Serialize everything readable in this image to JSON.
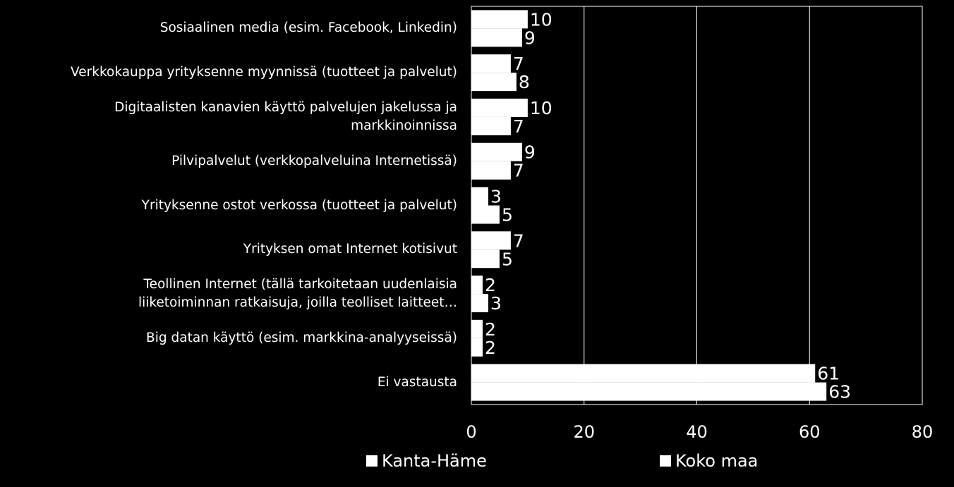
{
  "chart_data": {
    "type": "bar",
    "orientation": "horizontal",
    "categories": [
      "Sosiaalinen media (esim. Facebook, Linkedin)",
      "Verkkokauppa yrityksenne myynnissä (tuotteet ja palvelut)",
      "Digitaalisten kanavien käyttö palvelujen jakelussa ja markkinoinnissa",
      "Pilvipalvelut  (verkkopalveluina Internetissä)",
      "Yrityksenne ostot verkossa (tuotteet ja palvelut)",
      "Yrityksen omat Internet kotisivut",
      "Teollinen Internet (tällä tarkoitetaan uudenlaisia liiketoiminnan ratkaisuja, joilla teolliset laitteet…",
      "Big datan käyttö (esim. markkina-analyyseissä)",
      "Ei vastausta"
    ],
    "category_lines": [
      [
        "Sosiaalinen media (esim. Facebook, Linkedin)"
      ],
      [
        "Verkkokauppa yrityksenne myynnissä (tuotteet ja palvelut)"
      ],
      [
        "Digitaalisten kanavien käyttö palvelujen jakelussa ja",
        "markkinoinnissa"
      ],
      [
        "Pilvipalvelut  (verkkopalveluina Internetissä)"
      ],
      [
        "Yrityksenne ostot verkossa (tuotteet ja palvelut)"
      ],
      [
        "Yrityksen omat Internet kotisivut"
      ],
      [
        "Teollinen Internet (tällä tarkoitetaan uudenlaisia",
        "liiketoiminnan ratkaisuja, joilla teolliset laitteet…"
      ],
      [
        "Big datan käyttö (esim. markkina-analyyseissä)"
      ],
      [
        "Ei vastausta"
      ]
    ],
    "series": [
      {
        "name": "Kanta-Häme",
        "values": [
          10,
          7,
          10,
          9,
          3,
          7,
          2,
          2,
          61
        ],
        "color": "#ffffff"
      },
      {
        "name": "Koko maa",
        "values": [
          9,
          8,
          7,
          7,
          5,
          5,
          3,
          2,
          63
        ],
        "color": "#ffffff"
      }
    ],
    "xlim": [
      0,
      80
    ],
    "xticks": [
      "0",
      "20",
      "40",
      "60",
      "80"
    ],
    "grid": true,
    "legend_position": "bottom",
    "background": "#000000",
    "foreground": "#ffffff"
  }
}
